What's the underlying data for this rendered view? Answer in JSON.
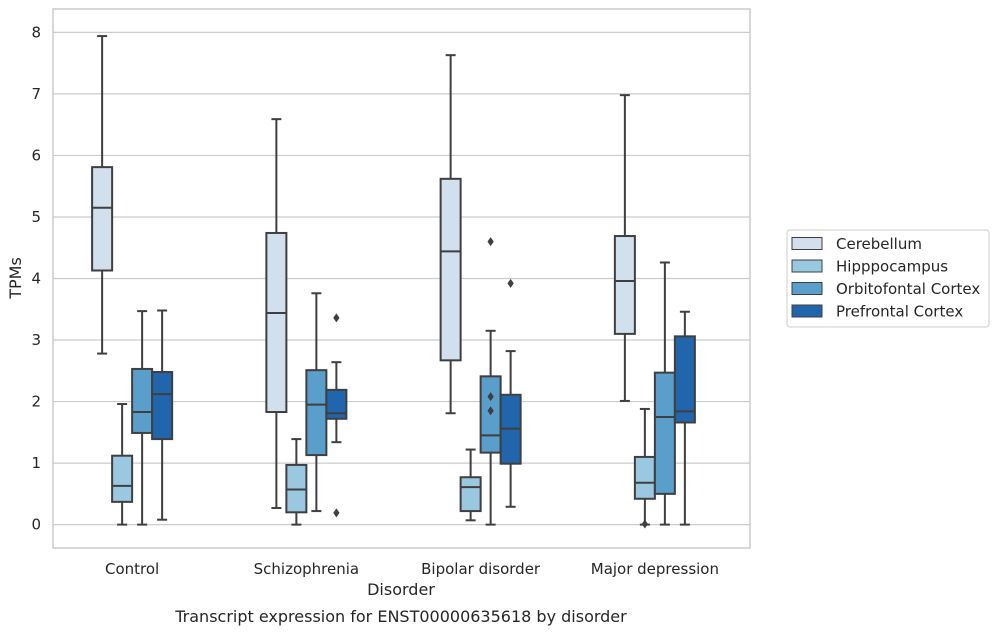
{
  "caption": "Transcript expression for ENST00000635618 by disorder",
  "chart_data": {
    "type": "box",
    "xlabel": "Disorder",
    "ylabel": "TPMs",
    "ylim": [
      -0.38,
      8.38
    ],
    "yticks": [
      0,
      1,
      2,
      3,
      4,
      5,
      6,
      7,
      8
    ],
    "grid": "horizontal",
    "legend_position": "right",
    "categories": [
      "Control",
      "Schizophrenia",
      "Bipolar disorder",
      "Major depression"
    ],
    "series": [
      {
        "name": "Cerebellum",
        "color": "#d2e0ee",
        "boxes": [
          {
            "whislo": 2.78,
            "q1": 4.13,
            "med": 5.15,
            "q3": 5.81,
            "whishi": 7.94,
            "fliers": []
          },
          {
            "whislo": 0.27,
            "q1": 1.83,
            "med": 3.44,
            "q3": 4.74,
            "whishi": 6.59,
            "fliers": []
          },
          {
            "whislo": 1.81,
            "q1": 2.67,
            "med": 4.44,
            "q3": 5.62,
            "whishi": 7.63,
            "fliers": []
          },
          {
            "whislo": 2.01,
            "q1": 3.1,
            "med": 3.96,
            "q3": 4.69,
            "whishi": 6.98,
            "fliers": []
          }
        ]
      },
      {
        "name": "Hipppocampus",
        "color": "#9ac8e0",
        "boxes": [
          {
            "whislo": 0.0,
            "q1": 0.37,
            "med": 0.63,
            "q3": 1.12,
            "whishi": 1.96,
            "fliers": []
          },
          {
            "whislo": 0.0,
            "q1": 0.2,
            "med": 0.57,
            "q3": 0.97,
            "whishi": 1.39,
            "fliers": []
          },
          {
            "whislo": 0.07,
            "q1": 0.22,
            "med": 0.61,
            "q3": 0.77,
            "whishi": 1.22,
            "fliers": []
          },
          {
            "whislo": 0.0,
            "q1": 0.42,
            "med": 0.68,
            "q3": 1.1,
            "whishi": 1.88,
            "fliers": [
              0.01
            ]
          }
        ]
      },
      {
        "name": "Orbitofontal Cortex",
        "color": "#5a9ecb",
        "boxes": [
          {
            "whislo": 0.0,
            "q1": 1.49,
            "med": 1.83,
            "q3": 2.53,
            "whishi": 3.47,
            "fliers": []
          },
          {
            "whislo": 0.22,
            "q1": 1.13,
            "med": 1.95,
            "q3": 2.51,
            "whishi": 3.76,
            "fliers": []
          },
          {
            "whislo": 0.0,
            "q1": 1.17,
            "med": 1.45,
            "q3": 2.41,
            "whishi": 3.15,
            "fliers": [
              4.6,
              2.08,
              1.85
            ]
          },
          {
            "whislo": 0.0,
            "q1": 0.5,
            "med": 1.75,
            "q3": 2.47,
            "whishi": 4.26,
            "fliers": []
          }
        ]
      },
      {
        "name": "Prefrontal Cortex",
        "color": "#2166ac",
        "boxes": [
          {
            "whislo": 0.08,
            "q1": 1.39,
            "med": 2.12,
            "q3": 2.48,
            "whishi": 3.48,
            "fliers": []
          },
          {
            "whislo": 1.34,
            "q1": 1.72,
            "med": 1.81,
            "q3": 2.19,
            "whishi": 2.64,
            "fliers": [
              3.36,
              0.19
            ]
          },
          {
            "whislo": 0.29,
            "q1": 0.99,
            "med": 1.56,
            "q3": 2.11,
            "whishi": 2.82,
            "fliers": [
              3.92
            ]
          },
          {
            "whislo": 0.0,
            "q1": 1.66,
            "med": 1.84,
            "q3": 3.06,
            "whishi": 3.46,
            "fliers": []
          }
        ]
      }
    ]
  }
}
